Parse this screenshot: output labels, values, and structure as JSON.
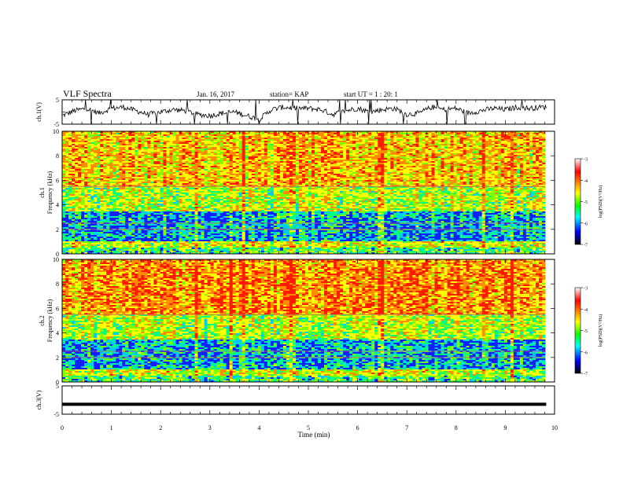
{
  "header": {
    "title": "VLF Spectra",
    "date": "Jan. 16, 2017",
    "station": "station= KAP",
    "start": "start  UT  =   1 : 20: 1"
  },
  "colorbar": {
    "label": "log(PSD)(V²/Hz)",
    "ticks": [
      "-3",
      "-4",
      "-5",
      "-6",
      "-7"
    ],
    "colors": [
      "#ffffff",
      "#ff0000",
      "#ffff00",
      "#00ff00",
      "#00ffff",
      "#0000ff",
      "#000000"
    ]
  },
  "chart_data": [
    {
      "type": "line",
      "name": "ch1-waveform",
      "ylabel": "ch.1(V)",
      "yticks": [
        "5",
        "-5"
      ],
      "ylim": [
        -5,
        5
      ],
      "xlim": [
        0,
        10
      ],
      "x": [
        0,
        0.25,
        0.5,
        0.75,
        1,
        1.25,
        1.5,
        1.75,
        2,
        2.25,
        2.5,
        2.75,
        3,
        3.25,
        3.5,
        3.75,
        4,
        4.25,
        4.5,
        4.75,
        5,
        5.25,
        5.5,
        5.75,
        6,
        6.25,
        6.5,
        6.75,
        7,
        7.25,
        7.5,
        7.75,
        8,
        8.25,
        8.5,
        8.75,
        9,
        9.25,
        9.5,
        9.75
      ],
      "y": [
        -1.5,
        0.5,
        1.5,
        -0.5,
        1.5,
        2,
        0.5,
        -1,
        0,
        1,
        0.5,
        -1,
        -1.5,
        -0.5,
        0,
        -1.5,
        -3,
        1,
        2,
        1.5,
        1.5,
        1,
        -1,
        0.5,
        1.5,
        0,
        1,
        1.5,
        -1,
        -0.5,
        2,
        1,
        1.5,
        -0.5,
        0.5,
        1.5,
        1,
        2,
        1.5,
        2
      ]
    },
    {
      "type": "heatmap",
      "name": "ch1-spectrogram",
      "ylabel": "ch.1\nFrequency (kHz)",
      "ylim": [
        0,
        10
      ],
      "xlim": [
        0,
        10
      ],
      "yticks": [
        "0",
        "2",
        "4",
        "6",
        "8",
        "10"
      ]
    },
    {
      "type": "heatmap",
      "name": "ch2-spectrogram",
      "ylabel": "ch.2\nFrequency (kHz)",
      "ylim": [
        0,
        10
      ],
      "xlim": [
        0,
        10
      ],
      "yticks": [
        "0",
        "2",
        "4",
        "6",
        "8",
        "10"
      ]
    },
    {
      "type": "line",
      "name": "ch3-waveform",
      "ylabel": "ch.3(V)",
      "yticks": [
        "5",
        "-5"
      ],
      "ylim": [
        -5,
        5
      ],
      "xlim": [
        0,
        10
      ],
      "x": [
        0,
        9.83
      ],
      "y": [
        -1.5,
        -1.5
      ]
    }
  ],
  "xaxis": {
    "label": "Time (min)",
    "ticks": [
      "0",
      "1",
      "2",
      "3",
      "4",
      "5",
      "6",
      "7",
      "8",
      "9",
      "10"
    ],
    "xlim": [
      0,
      10
    ]
  }
}
